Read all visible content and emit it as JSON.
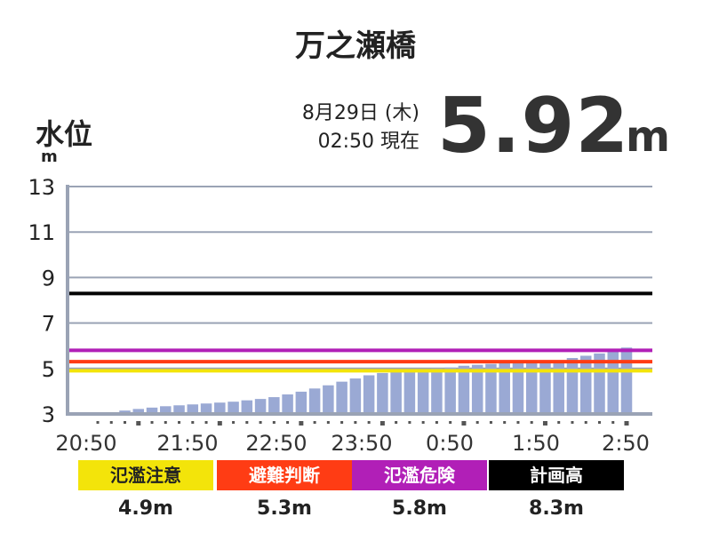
{
  "title": "万之瀬橋",
  "header": {
    "y_label": "水位",
    "y_unit": "m",
    "date_line": "8月29日 (木)",
    "time_line": "02:50 現在",
    "current_value": "5.92",
    "current_unit": "m"
  },
  "chart_data": {
    "type": "bar",
    "title": "万之瀬橋",
    "ylabel": "水位",
    "yunit": "m",
    "ylim": [
      3,
      13
    ],
    "yticks": [
      3,
      5,
      7,
      9,
      11,
      13
    ],
    "grid": true,
    "x_tick_labels": [
      "20:50",
      "21:50",
      "22:50",
      "23:50",
      "0:50",
      "1:50",
      "2:50"
    ],
    "interval_minutes": 10,
    "values": [
      3.02,
      3.08,
      3.15,
      3.22,
      3.28,
      3.34,
      3.38,
      3.42,
      3.46,
      3.5,
      3.54,
      3.6,
      3.66,
      3.74,
      3.86,
      3.98,
      4.12,
      4.26,
      4.42,
      4.56,
      4.7,
      4.8,
      4.88,
      4.92,
      4.96,
      5.0,
      5.04,
      5.12,
      5.16,
      5.2,
      5.24,
      5.26,
      5.28,
      5.3,
      5.36,
      5.46,
      5.56,
      5.66,
      5.78,
      5.92
    ],
    "bar_color": "#9aa9d4",
    "thresholds": [
      {
        "name": "氾濫注意",
        "value": 4.9,
        "value_label": "4.9m",
        "color": "#f3e40a",
        "text_color": "#222222"
      },
      {
        "name": "避難判断",
        "value": 5.3,
        "value_label": "5.3m",
        "color": "#ff3c14",
        "text_color": "#ffffff"
      },
      {
        "name": "氾濫危険",
        "value": 5.8,
        "value_label": "5.8m",
        "color": "#b11fb7",
        "text_color": "#ffffff"
      },
      {
        "name": "計画高",
        "value": 8.3,
        "value_label": "8.3m",
        "color": "#000000",
        "text_color": "#ffffff"
      }
    ]
  }
}
